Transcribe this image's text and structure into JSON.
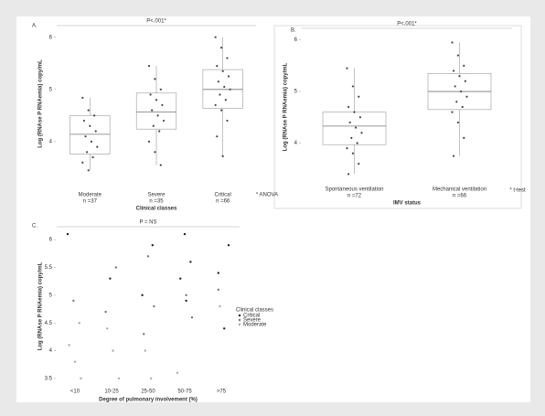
{
  "chart_data": [
    {
      "type": "box",
      "panel_label": "A.",
      "annotation": "P<.001*",
      "note": "* ANOVA",
      "ylabel": "Log (RNAse P RNAemia) copy/mL",
      "xlabel": "Clinical classes",
      "categories": [
        "Moderate",
        "Severe",
        "Critical"
      ],
      "n_labels": [
        "n =37",
        "n =35",
        "n =66"
      ],
      "ylim": [
        3.35,
        6.1
      ],
      "yticks": [
        4,
        5,
        6
      ],
      "boxes": [
        {
          "min": 3.45,
          "q1": 3.76,
          "median": 4.14,
          "q3": 4.5,
          "max": 4.84,
          "points": [
            4.84,
            4.6,
            4.5,
            4.4,
            4.3,
            4.2,
            4.1,
            4.0,
            3.9,
            3.8,
            3.7,
            3.6,
            3.45
          ]
        },
        {
          "min": 3.55,
          "q1": 4.24,
          "median": 4.57,
          "q3": 4.93,
          "max": 5.45,
          "points": [
            5.45,
            5.2,
            5.0,
            4.9,
            4.8,
            4.7,
            4.6,
            4.5,
            4.4,
            4.3,
            4.2,
            4.0,
            3.8,
            3.55
          ]
        },
        {
          "min": 3.72,
          "q1": 4.64,
          "median": 5.0,
          "q3": 5.38,
          "max": 6.0,
          "points": [
            6.0,
            5.8,
            5.6,
            5.45,
            5.35,
            5.25,
            5.15,
            5.05,
            5.0,
            4.9,
            4.8,
            4.7,
            4.6,
            4.4,
            4.1,
            3.72
          ]
        }
      ]
    },
    {
      "type": "box",
      "panel_label": "B.",
      "annotation": "P<.001*",
      "note": "* t-test",
      "ylabel": "Log (RNAse P RNAemia) copy/mL",
      "xlabel": "IMV status",
      "categories": [
        "Spontaneous ventilation",
        "Mechanical ventilation"
      ],
      "n_labels": [
        "n =72",
        "n =66"
      ],
      "ylim": [
        3.3,
        6.1
      ],
      "yticks": [
        4,
        5,
        6
      ],
      "boxes": [
        {
          "min": 3.4,
          "q1": 3.97,
          "median": 4.33,
          "q3": 4.6,
          "max": 5.45,
          "points": [
            5.45,
            5.1,
            4.9,
            4.7,
            4.6,
            4.5,
            4.4,
            4.3,
            4.2,
            4.1,
            4.0,
            3.9,
            3.8,
            3.6,
            3.4
          ]
        },
        {
          "min": 3.75,
          "q1": 4.65,
          "median": 5.0,
          "q3": 5.35,
          "max": 5.95,
          "points": [
            5.95,
            5.7,
            5.5,
            5.4,
            5.3,
            5.2,
            5.1,
            5.0,
            4.9,
            4.8,
            4.7,
            4.6,
            4.4,
            4.1,
            3.75
          ]
        }
      ]
    },
    {
      "type": "scatter",
      "panel_label": "C.",
      "annotation": "P = NS",
      "ylabel": "Log (RNAse P RNAemia) copy/mL",
      "xlabel": "Degree of pulmonary involvement (%)",
      "categories": [
        "<10",
        "10-25",
        "25-50",
        "50-75",
        ">75"
      ],
      "ylim": [
        3.4,
        6.2
      ],
      "yticks": [
        3.5,
        4,
        4.5,
        5,
        5.5,
        6
      ],
      "legend_title": "Clinical classes",
      "series": [
        {
          "name": "Critical",
          "color": "#222222",
          "x": [
            "<10",
            "10-25",
            "25-50",
            "25-50",
            "50-75",
            "50-75",
            "50-75",
            "50-75",
            ">75",
            ">75",
            ">75"
          ],
          "values": [
            6.1,
            5.3,
            5.9,
            5.0,
            6.1,
            5.6,
            5.3,
            4.9,
            5.9,
            5.4,
            4.4
          ]
        },
        {
          "name": "Severe",
          "color": "#777777",
          "x": [
            "<10",
            "10-25",
            "10-25",
            "25-50",
            "25-50",
            "25-50",
            "50-75",
            "50-75",
            ">75"
          ],
          "values": [
            4.9,
            5.5,
            4.7,
            5.7,
            4.8,
            4.3,
            5.0,
            4.6,
            5.1
          ]
        },
        {
          "name": "Moderate",
          "color": "#aaaaaa",
          "x": [
            "<10",
            "<10",
            "<10",
            "<10",
            "10-25",
            "10-25",
            "10-25",
            "25-50",
            "25-50",
            "50-75",
            ">75"
          ],
          "values": [
            4.5,
            4.1,
            3.8,
            3.5,
            4.4,
            4.0,
            3.5,
            4.0,
            3.5,
            3.6,
            4.8
          ]
        }
      ]
    }
  ]
}
